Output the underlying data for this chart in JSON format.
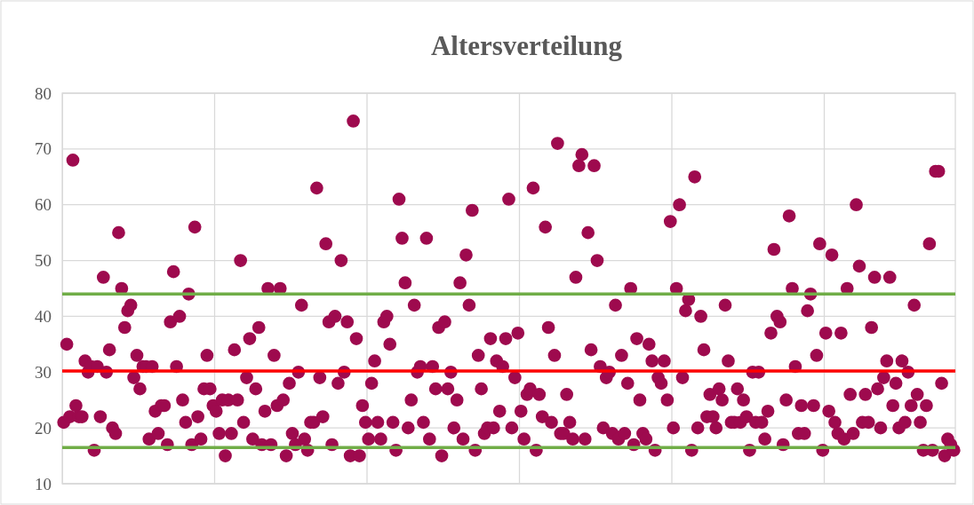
{
  "chart_data": {
    "type": "scatter",
    "title": "Altersverteilung",
    "color": "#9e0a4e",
    "marker": "circle",
    "grid": true,
    "tick_labels": "y",
    "ylim": [
      10,
      80
    ],
    "yticks": [
      10,
      20,
      30,
      40,
      50,
      60,
      70,
      80
    ],
    "ref_lines": [
      {
        "axis": "y",
        "value": 30.2,
        "color": "#ff0000"
      },
      {
        "axis": "y",
        "value": 44,
        "color": "#70ad47"
      },
      {
        "axis": "y",
        "value": 16.5,
        "color": "#70ad47"
      }
    ],
    "categories": [
      null,
      null,
      null,
      null,
      null,
      null,
      null,
      null,
      null,
      null,
      null,
      null,
      null,
      null,
      null,
      null,
      null,
      null,
      null,
      null,
      null,
      null,
      null,
      null,
      null,
      null,
      null,
      null,
      null,
      null,
      null,
      null,
      null,
      null,
      null,
      null,
      null,
      null,
      null,
      null,
      null,
      null,
      null,
      null,
      null,
      null,
      null,
      null,
      null,
      null,
      null,
      null,
      null,
      null,
      null,
      null,
      null,
      null,
      null,
      null,
      null,
      null,
      null,
      null,
      null,
      null,
      null,
      null,
      null,
      null,
      null,
      null,
      null,
      null,
      null,
      null,
      null,
      null,
      null,
      null,
      null,
      null,
      null,
      null,
      null,
      null,
      null,
      null,
      null,
      null,
      null,
      null,
      null,
      null,
      null,
      null,
      null,
      null,
      null,
      null,
      null,
      null,
      null,
      null,
      null,
      null,
      null,
      null,
      null,
      null,
      null,
      null,
      null,
      null,
      null,
      null,
      null,
      null,
      null,
      null,
      null,
      null,
      null,
      null,
      null,
      null,
      null,
      null,
      null,
      null,
      null,
      null,
      null,
      null,
      null,
      null,
      null,
      null,
      null,
      null,
      null,
      null,
      null,
      null,
      null,
      null,
      null,
      null,
      null,
      null,
      null,
      null,
      null,
      null,
      null,
      null,
      null,
      null,
      null,
      null,
      null,
      null,
      null,
      null,
      null,
      null,
      null,
      null,
      null,
      null,
      null,
      null,
      null,
      null,
      null,
      null,
      null,
      null,
      null,
      null,
      null,
      null,
      null,
      null,
      null,
      null,
      null,
      null,
      null,
      null,
      null,
      null,
      null,
      null,
      null,
      null,
      null,
      null,
      null,
      null,
      null,
      null,
      null,
      null,
      null,
      null,
      null,
      null,
      null,
      null,
      null,
      null,
      null,
      null,
      null,
      null,
      null,
      null,
      null,
      null,
      null,
      null,
      null,
      null,
      null,
      null,
      null,
      null,
      null,
      null,
      null,
      null,
      null,
      null,
      null,
      null,
      null,
      null,
      null,
      null,
      null,
      null,
      null,
      null,
      null,
      null,
      null,
      null,
      null,
      null,
      null,
      null,
      null,
      null,
      null,
      null,
      null,
      null,
      null,
      null,
      null,
      null,
      null,
      null,
      null,
      null,
      null,
      null,
      null,
      null,
      null,
      null,
      null,
      null,
      null,
      null,
      null,
      null,
      null,
      null,
      null,
      null,
      null,
      null,
      null,
      null,
      null,
      null,
      null,
      null,
      null,
      null,
      null
    ],
    "values": [
      21,
      35,
      22,
      68,
      24,
      22,
      22,
      32,
      30,
      31,
      16,
      31,
      22,
      47,
      30,
      34,
      20,
      19,
      55,
      45,
      38,
      41,
      42,
      29,
      33,
      27,
      31,
      31,
      18,
      31,
      23,
      19,
      24,
      24,
      17,
      39,
      48,
      31,
      40,
      25,
      21,
      44,
      17,
      56,
      22,
      18,
      27,
      33,
      27,
      24,
      23,
      19,
      25,
      15,
      25,
      19,
      34,
      25,
      50,
      21,
      29,
      36,
      18,
      27,
      38,
      17,
      23,
      45,
      17,
      33,
      24,
      45,
      25,
      15,
      28,
      19,
      17,
      30,
      42,
      18,
      16,
      21,
      21,
      63,
      29,
      22,
      53,
      39,
      17,
      40,
      28,
      50,
      30,
      39,
      15,
      75,
      36,
      15,
      24,
      21,
      18,
      28,
      32,
      21,
      18,
      39,
      40,
      35,
      21,
      16,
      61,
      54,
      46,
      20,
      25,
      42,
      30,
      31,
      21,
      54,
      18,
      31,
      27,
      38,
      15,
      39,
      27,
      30,
      20,
      25,
      46,
      18,
      51,
      42,
      59,
      16,
      33,
      27,
      19,
      20,
      36,
      20,
      32,
      23,
      31,
      36,
      61,
      20,
      29,
      37,
      23,
      18,
      26,
      27,
      63,
      16,
      26,
      22,
      56,
      38,
      21,
      33,
      71,
      19,
      19,
      26,
      21,
      18,
      47,
      67,
      69,
      18,
      55,
      34,
      67,
      50,
      31,
      20,
      29,
      30,
      19,
      42,
      18,
      33,
      19,
      28,
      45,
      17,
      36,
      25,
      19,
      18,
      35,
      32,
      16,
      29,
      28,
      32,
      25,
      57,
      20,
      45,
      60,
      29,
      41,
      43,
      16,
      65,
      20,
      40,
      34,
      22,
      26,
      22,
      20,
      27,
      25,
      42,
      32,
      21,
      21,
      27,
      21,
      25,
      22,
      16,
      30,
      21,
      30,
      21,
      18,
      23,
      37,
      52,
      40,
      39,
      17,
      25,
      58,
      45,
      31,
      19,
      24,
      19,
      41,
      44,
      24,
      33,
      53,
      16,
      37,
      23,
      51,
      21,
      19,
      37,
      18,
      45,
      26,
      19,
      60,
      49,
      21,
      26,
      21,
      38,
      47,
      27,
      20,
      29,
      32,
      47,
      24,
      28,
      20,
      32,
      21,
      30,
      24,
      42,
      26,
      21,
      16,
      24,
      53,
      16,
      66,
      66,
      28,
      15,
      18,
      17,
      16
    ]
  }
}
